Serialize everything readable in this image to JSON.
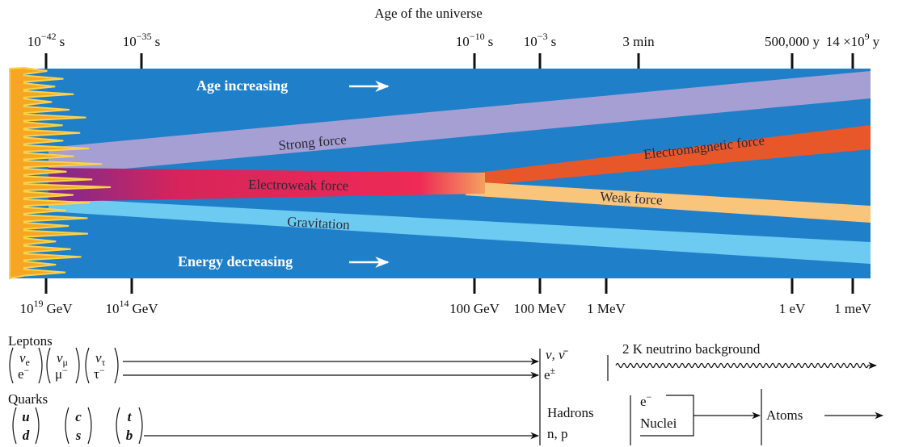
{
  "header": {
    "title": "Age of the universe"
  },
  "time_ticks": [
    {
      "base": "10",
      "exp": "−42",
      "unit": "s"
    },
    {
      "base": "10",
      "exp": "−35",
      "unit": "s"
    },
    {
      "base": "10",
      "exp": "−10",
      "unit": "s"
    },
    {
      "base": "10",
      "exp": "−3",
      "unit": "s"
    },
    {
      "text": "3 min"
    },
    {
      "text": "500,000 y"
    },
    {
      "base": "14 ×10",
      "exp": "9",
      "unit": "y"
    }
  ],
  "energy_ticks": [
    {
      "base": "10",
      "exp": "19",
      "unit": "GeV"
    },
    {
      "base": "10",
      "exp": "14",
      "unit": "GeV"
    },
    {
      "text": "100 GeV"
    },
    {
      "text": "100 MeV"
    },
    {
      "text": "1 MeV"
    },
    {
      "text": "1 eV"
    },
    {
      "text": "1 meV"
    }
  ],
  "bands": {
    "age_increasing": "Age increasing",
    "strong": "Strong force",
    "electroweak": "Electroweak force",
    "electromagnetic": "Electromagnetic force",
    "weak": "Weak force",
    "gravitation": "Gravitation",
    "energy_decreasing": "Energy decreasing"
  },
  "particles": {
    "leptons_label": "Leptons",
    "leptons": [
      {
        "upper": "ν",
        "upper_sub": "e",
        "lower": "e",
        "lower_sup": "−"
      },
      {
        "upper": "ν",
        "upper_sub": "μ",
        "lower": "μ",
        "lower_sup": "−"
      },
      {
        "upper": "ν",
        "upper_sub": "τ",
        "lower": "τ",
        "lower_sup": "−"
      }
    ],
    "quarks_label": "Quarks",
    "quarks": [
      {
        "upper": "u",
        "lower": "d"
      },
      {
        "upper": "c",
        "lower": "s"
      },
      {
        "upper": "t",
        "lower": "b"
      }
    ],
    "neutrinos": "ν, ν̄",
    "electrons": {
      "base": "e",
      "sup": "±"
    },
    "background": "2 K neutrino background",
    "hadrons": "Hadrons",
    "nucleons": "n, p",
    "electron": {
      "base": "e",
      "sup": "−"
    },
    "nuclei": "Nuclei",
    "atoms": "Atoms"
  }
}
